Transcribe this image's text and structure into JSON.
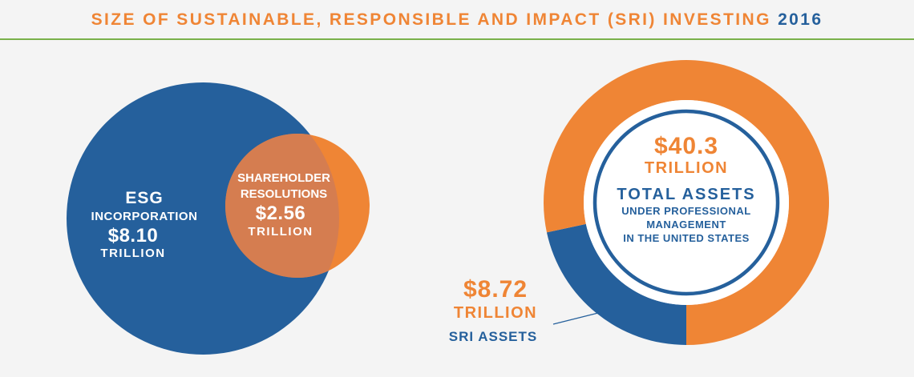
{
  "header": {
    "title": "SIZE OF SUSTAINABLE, RESPONSIBLE AND IMPACT (SRI) INVESTING",
    "year": "2016"
  },
  "colors": {
    "blue": "#25609c",
    "orange": "#ef8535",
    "overlap": "#d57d50",
    "green_rule": "#79b04a",
    "background": "#f4f4f4"
  },
  "chart_data": [
    {
      "type": "venn",
      "sets": [
        {
          "line1": "ESG",
          "line2": "INCORPORATION",
          "value_text": "$8.10",
          "unit": "TRILLION",
          "value": 8.1,
          "color": "#25609c"
        },
        {
          "line1": "SHAREHOLDER",
          "line2": "RESOLUTIONS",
          "value_text": "$2.56",
          "unit": "TRILLION",
          "value": 2.56,
          "color": "#ef8535"
        }
      ]
    },
    {
      "type": "pie",
      "style": "donut",
      "total": {
        "value_text": "$40.3",
        "unit": "TRILLION",
        "value": 40.3,
        "label": "TOTAL ASSETS",
        "sublabel_lines": [
          "UNDER PROFESSIONAL",
          "MANAGEMENT",
          "IN THE UNITED STATES"
        ]
      },
      "slices": [
        {
          "name": "SRI ASSETS",
          "value_text": "$8.72",
          "unit": "TRILLION",
          "value": 8.72,
          "color": "#25609c"
        },
        {
          "value": 31.58,
          "color": "#ef8535"
        }
      ]
    }
  ]
}
